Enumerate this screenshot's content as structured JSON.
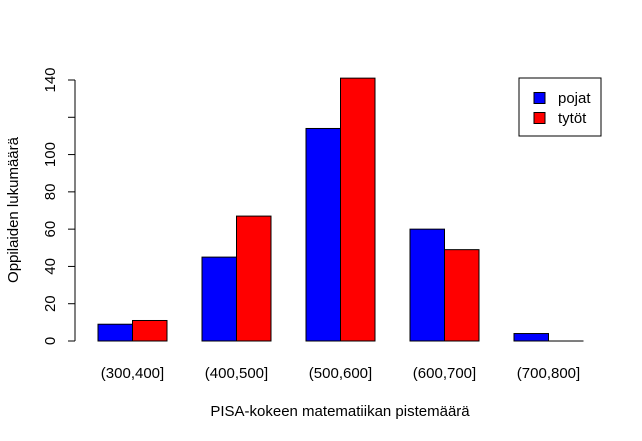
{
  "chart_data": {
    "type": "bar",
    "categories": [
      "(300,400]",
      "(400,500]",
      "(500,600]",
      "(600,700]",
      "(700,800]"
    ],
    "series": [
      {
        "name": "pojat",
        "color": "#0000ff",
        "values": [
          9,
          45,
          114,
          60,
          4
        ]
      },
      {
        "name": "tytöt",
        "color": "#ff0000",
        "values": [
          11,
          67,
          141,
          49,
          0
        ]
      }
    ],
    "xlabel": "PISA-kokeen matematiikan pistemäärä",
    "ylabel": "Oppilaiden lukumäärä",
    "ylim": [
      0,
      140
    ],
    "yticks": [
      0,
      20,
      40,
      60,
      80,
      100,
      120,
      140
    ],
    "ytick_labels": [
      "0",
      "20",
      "40",
      "60",
      "80",
      "100",
      "",
      "140"
    ],
    "grid": false,
    "legend_position": "top-right"
  }
}
